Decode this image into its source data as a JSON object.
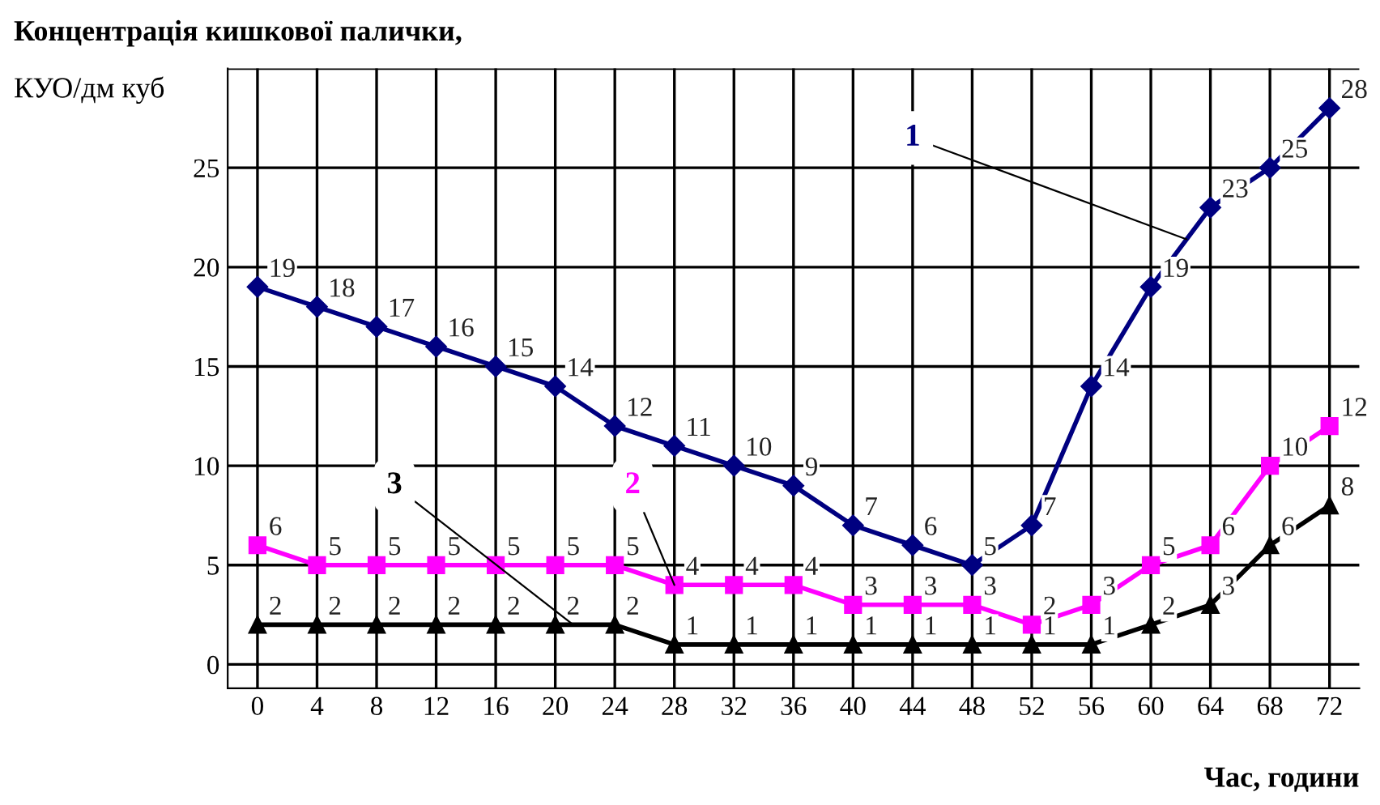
{
  "chart_data": {
    "type": "line",
    "title": "Концентрація кишкової палички,",
    "ylabel": "КУО/дм куб",
    "xlabel": "Час, години",
    "categories": [
      "0",
      "4",
      "8",
      "12",
      "16",
      "20",
      "24",
      "28",
      "32",
      "36",
      "40",
      "44",
      "48",
      "52",
      "56",
      "60",
      "64",
      "68",
      "72"
    ],
    "series": [
      {
        "name": "1",
        "color": "#000080",
        "marker": "diamond",
        "values": [
          19,
          18,
          17,
          16,
          15,
          14,
          12,
          11,
          10,
          9,
          7,
          6,
          5,
          7,
          14,
          19,
          23,
          25,
          28
        ]
      },
      {
        "name": "2",
        "color": "#ff00ff",
        "marker": "square",
        "values": [
          6,
          5,
          5,
          5,
          5,
          5,
          5,
          4,
          4,
          4,
          3,
          3,
          3,
          2,
          3,
          5,
          6,
          10,
          12
        ]
      },
      {
        "name": "3",
        "color": "#000000",
        "marker": "triangle",
        "values": [
          2,
          2,
          2,
          2,
          2,
          2,
          2,
          1,
          1,
          1,
          1,
          1,
          1,
          1,
          1,
          2,
          3,
          6,
          8
        ]
      }
    ],
    "ylim": [
      -1.2,
      30
    ],
    "yticks": [
      0,
      5,
      10,
      15,
      20,
      25,
      {
        "value": 30,
        "label": null
      }
    ],
    "grid": true,
    "data_labels": true,
    "line_style": "solid",
    "legend": false
  }
}
